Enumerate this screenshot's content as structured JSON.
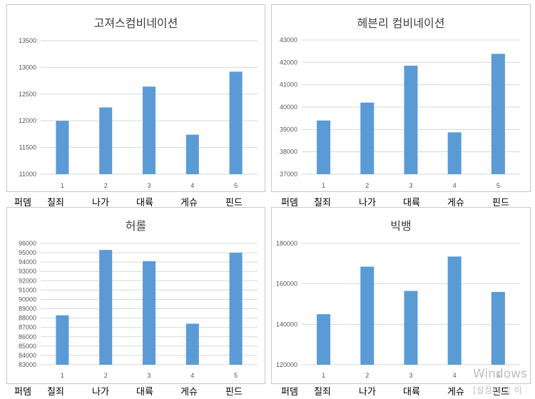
{
  "category_labels": [
    "퍼뎀",
    "칠죄",
    "나가",
    "대륙",
    "게슈",
    "핀드"
  ],
  "bar_color": "#5b9bd5",
  "watermark": {
    "line1": "Windows",
    "line2": "[설정]으로 이"
  },
  "chart_data": [
    {
      "type": "bar",
      "title": "고져스컴비네이션",
      "categories": [
        "1",
        "2",
        "3",
        "4",
        "5"
      ],
      "values": [
        12000,
        12250,
        12640,
        11740,
        12920
      ],
      "ylim": [
        11000,
        13500
      ],
      "yticks": [
        11000,
        11500,
        12000,
        12500,
        13000,
        13500
      ],
      "grid": true
    },
    {
      "type": "bar",
      "title": "헤븐리 컴비네이션",
      "categories": [
        "1",
        "2",
        "3",
        "4",
        "5"
      ],
      "values": [
        39400,
        40200,
        41850,
        38870,
        42380
      ],
      "ylim": [
        37000,
        43000
      ],
      "yticks": [
        37000,
        38000,
        39000,
        40000,
        41000,
        42000,
        43000
      ],
      "grid": true
    },
    {
      "type": "bar",
      "title": "허롤",
      "categories": [
        "1",
        "2",
        "3",
        "4",
        "5"
      ],
      "values": [
        88300,
        95300,
        94100,
        87400,
        95000
      ],
      "ylim": [
        83000,
        96000
      ],
      "yticks": [
        83000,
        84000,
        85000,
        86000,
        87000,
        88000,
        89000,
        90000,
        91000,
        92000,
        93000,
        94000,
        95000,
        96000
      ],
      "grid": true
    },
    {
      "type": "bar",
      "title": "빅뱅",
      "categories": [
        "1",
        "2",
        "3",
        "4",
        "5"
      ],
      "values": [
        145000,
        168500,
        156500,
        173500,
        156000
      ],
      "ylim": [
        120000,
        180000
      ],
      "yticks": [
        120000,
        140000,
        160000,
        180000
      ],
      "grid": true
    }
  ]
}
